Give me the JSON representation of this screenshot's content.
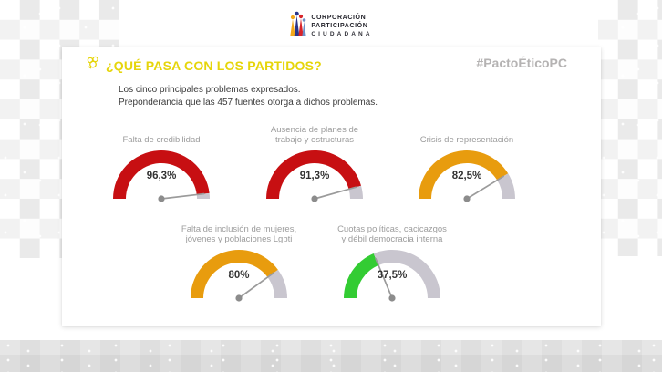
{
  "logo": {
    "line1": "CORPORACIÓN",
    "line2": "PARTICIPACIÓN",
    "line3": "CIUDADANA",
    "icon": "people-group-icon",
    "figure_colors": [
      "#F2A71B",
      "#27348B",
      "#D8232A",
      "#6E8FC9"
    ]
  },
  "slide": {
    "title": "¿QUÉ PASA CON LOS PARTIDOS?",
    "title_color": "#E6D50A",
    "title_icon": "doodle-hand-icon",
    "hashtag": "#PactoÉticoPC",
    "hashtag_color": "#B5B3B3",
    "subtitle_line1": "Los cinco principales problemas expresados.",
    "subtitle_line2": "Preponderancia que las 457 fuentes otorga a dichos problemas."
  },
  "chart_data": {
    "type": "gauge",
    "unit": "%",
    "range": [
      0,
      100
    ],
    "track_color": "#C9C6CF",
    "needle_color": "#9B9B9B",
    "value_text_color": "#333333",
    "gauges": [
      {
        "label": "Falta de credibilidad",
        "label_lines": [
          "Falta de credibilidad"
        ],
        "value": 96.3,
        "display": "96,3%",
        "color": "#C70F12"
      },
      {
        "label": "Ausencia de planes de trabajo y estructuras",
        "label_lines": [
          "Ausencia de planes de",
          "trabajo y estructuras"
        ],
        "value": 91.3,
        "display": "91,3%",
        "color": "#C70F12"
      },
      {
        "label": "Crisis de representación",
        "label_lines": [
          "Crisis de representación"
        ],
        "value": 82.5,
        "display": "82,5%",
        "color": "#E89C0E"
      },
      {
        "label": "Falta de inclusión de mujeres, jóvenes y poblaciones Lgbti",
        "label_lines": [
          "Falta de inclusión de mujeres,",
          "jóvenes y poblaciones Lgbti"
        ],
        "value": 80,
        "display": "80%",
        "color": "#E89C0E"
      },
      {
        "label": "Cuotas políticas, cacicazgos y débil democracia interna",
        "label_lines": [
          "Cuotas políticas, cacicazgos",
          "y débil democracia interna"
        ],
        "value": 37.5,
        "display": "37,5%",
        "color": "#33CC33"
      }
    ]
  }
}
